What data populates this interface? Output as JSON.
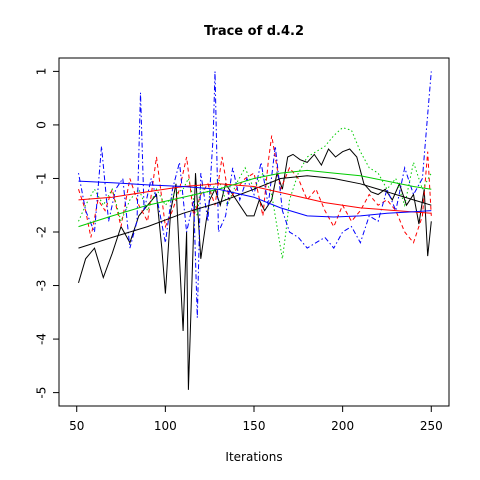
{
  "chart_data": {
    "type": "line",
    "title": "Trace of d.4.2",
    "xlabel": "Iterations",
    "ylabel": "",
    "xlim": [
      40,
      260
    ],
    "ylim": [
      -5.25,
      1.25
    ],
    "x_ticks": [
      50,
      100,
      150,
      200,
      250
    ],
    "y_ticks": [
      -5,
      -4,
      -3,
      -2,
      -1,
      0,
      1
    ],
    "grid": false,
    "legend": "none",
    "series": [
      {
        "color": "#000000",
        "line_style": "solid",
        "x": [
          51,
          55,
          60,
          65,
          70,
          75,
          80,
          85,
          90,
          95,
          98,
          100,
          103,
          106,
          108,
          110,
          112,
          113,
          115,
          117,
          120,
          123,
          125,
          128,
          131,
          134,
          138,
          142,
          146,
          150,
          153,
          156,
          160,
          163,
          166,
          169,
          172,
          176,
          180,
          184,
          188,
          192,
          196,
          200,
          204,
          208,
          212,
          216,
          220,
          224,
          228,
          232,
          236,
          240,
          243,
          246,
          248,
          250
        ],
        "values": [
          -2.95,
          -2.5,
          -2.3,
          -2.85,
          -2.4,
          -1.9,
          -2.2,
          -1.7,
          -1.5,
          -1.3,
          -2.3,
          -3.15,
          -1.6,
          -1.1,
          -2.5,
          -3.85,
          -2.0,
          -4.95,
          -2.9,
          -0.9,
          -2.5,
          -1.8,
          -1.4,
          -1.2,
          -1.5,
          -1.1,
          -1.3,
          -1.5,
          -1.7,
          -1.7,
          -1.4,
          -1.6,
          -1.4,
          -0.9,
          -1.2,
          -0.6,
          -0.55,
          -0.65,
          -0.7,
          -0.55,
          -0.75,
          -0.45,
          -0.6,
          -0.5,
          -0.45,
          -0.6,
          -1.1,
          -1.25,
          -1.3,
          -1.2,
          -1.4,
          -1.1,
          -1.5,
          -1.3,
          -1.85,
          -1.2,
          -2.45,
          -1.8
        ]
      },
      {
        "color": "#ff0000",
        "line_style": "dashed",
        "x": [
          51,
          55,
          58,
          62,
          66,
          70,
          75,
          80,
          85,
          90,
          95,
          100,
          104,
          108,
          112,
          116,
          120,
          124,
          128,
          132,
          136,
          140,
          145,
          150,
          155,
          158,
          160,
          162,
          165,
          170,
          175,
          180,
          185,
          190,
          195,
          200,
          205,
          210,
          215,
          220,
          225,
          230,
          235,
          240,
          245,
          248,
          250
        ],
        "values": [
          -1.2,
          -1.6,
          -2.1,
          -1.4,
          -1.6,
          -1.2,
          -1.9,
          -1.0,
          -1.5,
          -1.8,
          -0.6,
          -1.9,
          -1.6,
          -1.2,
          -0.6,
          -1.7,
          -1.3,
          -1.1,
          -1.5,
          -0.6,
          -1.4,
          -1.2,
          -1.0,
          -0.9,
          -1.7,
          -0.7,
          -0.2,
          -0.6,
          -1.2,
          -0.8,
          -1.0,
          -1.4,
          -1.2,
          -1.6,
          -1.9,
          -1.5,
          -1.8,
          -1.6,
          -1.3,
          -1.5,
          -1.4,
          -1.6,
          -2.0,
          -2.2,
          -1.7,
          -0.5,
          -1.7
        ]
      },
      {
        "color": "#00cc00",
        "line_style": "dotted",
        "x": [
          51,
          55,
          60,
          65,
          70,
          75,
          80,
          85,
          90,
          95,
          100,
          105,
          110,
          113,
          116,
          118,
          120,
          125,
          130,
          135,
          140,
          145,
          150,
          155,
          160,
          163,
          166,
          168,
          170,
          175,
          180,
          185,
          190,
          195,
          200,
          205,
          210,
          215,
          220,
          225,
          230,
          235,
          240,
          245,
          250
        ],
        "values": [
          -1.8,
          -1.5,
          -1.2,
          -1.5,
          -1.2,
          -1.8,
          -1.4,
          -1.2,
          -1.6,
          -1.2,
          -1.5,
          -1.3,
          -1.2,
          -1.0,
          -1.4,
          -1.7,
          -1.1,
          -1.3,
          -1.0,
          -1.5,
          -1.1,
          -0.8,
          -1.2,
          -0.9,
          -1.3,
          -1.9,
          -2.5,
          -2.0,
          -1.4,
          -0.9,
          -0.6,
          -0.5,
          -0.4,
          -0.2,
          -0.05,
          -0.1,
          -0.5,
          -0.8,
          -0.9,
          -1.2,
          -1.0,
          -1.5,
          -0.7,
          -1.2,
          -0.9
        ]
      },
      {
        "color": "#0000ff",
        "line_style": "dotdash",
        "x": [
          51,
          55,
          60,
          64,
          68,
          72,
          76,
          80,
          84,
          86,
          88,
          92,
          96,
          100,
          104,
          108,
          112,
          116,
          118,
          120,
          124,
          127,
          128,
          130,
          134,
          138,
          142,
          146,
          150,
          154,
          158,
          162,
          166,
          170,
          175,
          180,
          185,
          190,
          195,
          200,
          205,
          210,
          215,
          220,
          225,
          230,
          235,
          240,
          245,
          248,
          250
        ],
        "values": [
          -0.9,
          -1.6,
          -2.0,
          -0.4,
          -1.8,
          -1.2,
          -1.0,
          -2.3,
          -1.8,
          0.6,
          -1.6,
          -1.0,
          -1.5,
          -2.2,
          -1.2,
          -0.7,
          -2.0,
          -1.4,
          -3.6,
          -0.9,
          -1.8,
          -0.2,
          1.0,
          -2.0,
          -1.7,
          -0.8,
          -1.4,
          -1.0,
          -1.3,
          -0.7,
          -1.5,
          -0.4,
          -1.6,
          -2.0,
          -2.1,
          -2.3,
          -2.2,
          -2.1,
          -2.3,
          -2.0,
          -1.9,
          -2.2,
          -1.7,
          -1.8,
          -1.2,
          -1.6,
          -0.8,
          -1.3,
          -1.0,
          0.2,
          1.0
        ]
      },
      {
        "color": "#000000",
        "line_style": "solid",
        "x": [
          51,
          70,
          90,
          110,
          130,
          150,
          165,
          180,
          195,
          210,
          225,
          240,
          250
        ],
        "values": [
          -2.3,
          -2.1,
          -1.9,
          -1.65,
          -1.45,
          -1.2,
          -1.0,
          -0.95,
          -1.0,
          -1.1,
          -1.25,
          -1.4,
          -1.5
        ]
      },
      {
        "color": "#ff0000",
        "line_style": "solid",
        "x": [
          51,
          70,
          90,
          110,
          130,
          150,
          170,
          190,
          210,
          230,
          250
        ],
        "values": [
          -1.4,
          -1.35,
          -1.25,
          -1.15,
          -1.1,
          -1.15,
          -1.3,
          -1.45,
          -1.55,
          -1.6,
          -1.65
        ]
      },
      {
        "color": "#00cc00",
        "line_style": "solid",
        "x": [
          51,
          70,
          90,
          110,
          130,
          150,
          165,
          180,
          195,
          210,
          225,
          240,
          250
        ],
        "values": [
          -1.9,
          -1.7,
          -1.5,
          -1.35,
          -1.2,
          -1.0,
          -0.9,
          -0.85,
          -0.9,
          -0.95,
          -1.05,
          -1.15,
          -1.2
        ]
      },
      {
        "color": "#0000ff",
        "line_style": "solid",
        "x": [
          51,
          70,
          90,
          110,
          130,
          150,
          165,
          180,
          195,
          210,
          225,
          240,
          250
        ],
        "values": [
          -1.05,
          -1.08,
          -1.12,
          -1.15,
          -1.2,
          -1.35,
          -1.55,
          -1.7,
          -1.72,
          -1.7,
          -1.65,
          -1.62,
          -1.6
        ]
      }
    ]
  }
}
